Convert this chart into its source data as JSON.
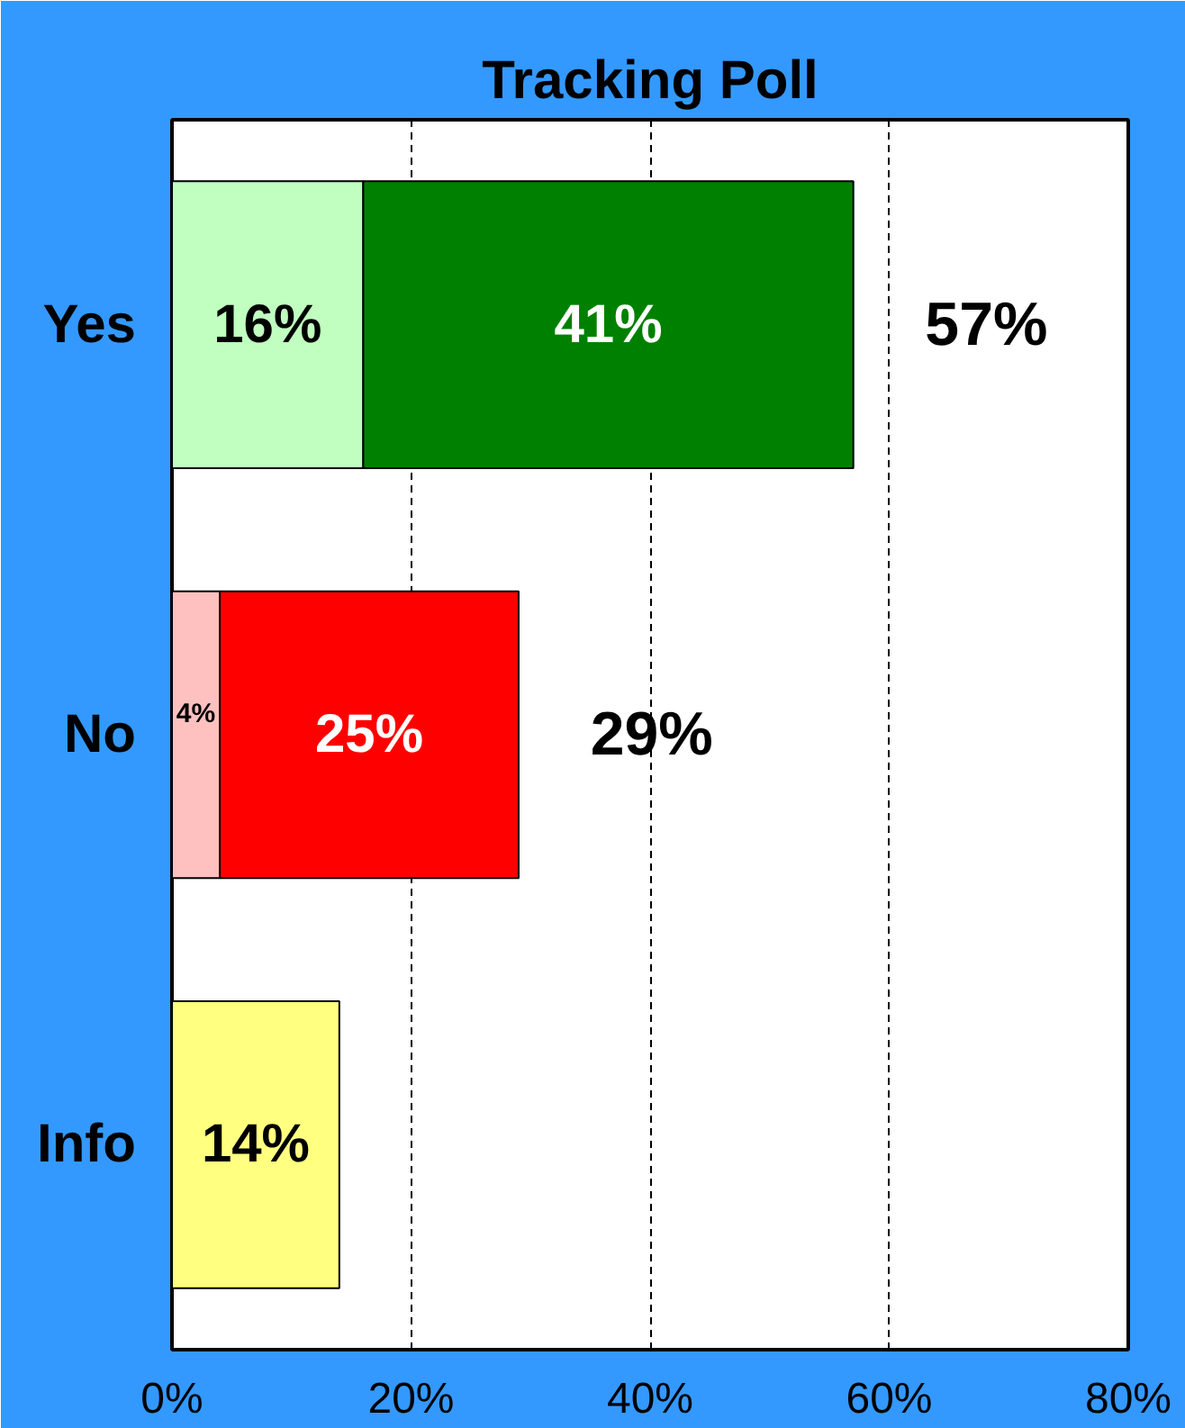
{
  "chart_data": {
    "type": "bar",
    "title": "Tracking Poll",
    "orientation": "horizontal",
    "stacked": true,
    "categories": [
      "Yes",
      "No",
      "Info"
    ],
    "series": [
      {
        "colors": [
          "#c0ffc0",
          "#ffc0c0",
          "#ffff80"
        ],
        "values": [
          16,
          4,
          14
        ],
        "value_labels": [
          "16%",
          "4%",
          "14%"
        ]
      },
      {
        "colors": [
          "#008000",
          "#ff0000",
          null
        ],
        "values": [
          41,
          25,
          null
        ],
        "value_labels": [
          "41%",
          "25%",
          null
        ]
      }
    ],
    "totals": [
      "57%",
      "29%",
      null
    ],
    "xlim": [
      0,
      80
    ],
    "xticks": [
      {
        "value": 0,
        "label": "0%"
      },
      {
        "value": 20,
        "label": "20%"
      },
      {
        "value": 40,
        "label": "40%"
      },
      {
        "value": 60,
        "label": "60%"
      },
      {
        "value": 80,
        "label": "80%"
      }
    ],
    "grid": "x"
  }
}
